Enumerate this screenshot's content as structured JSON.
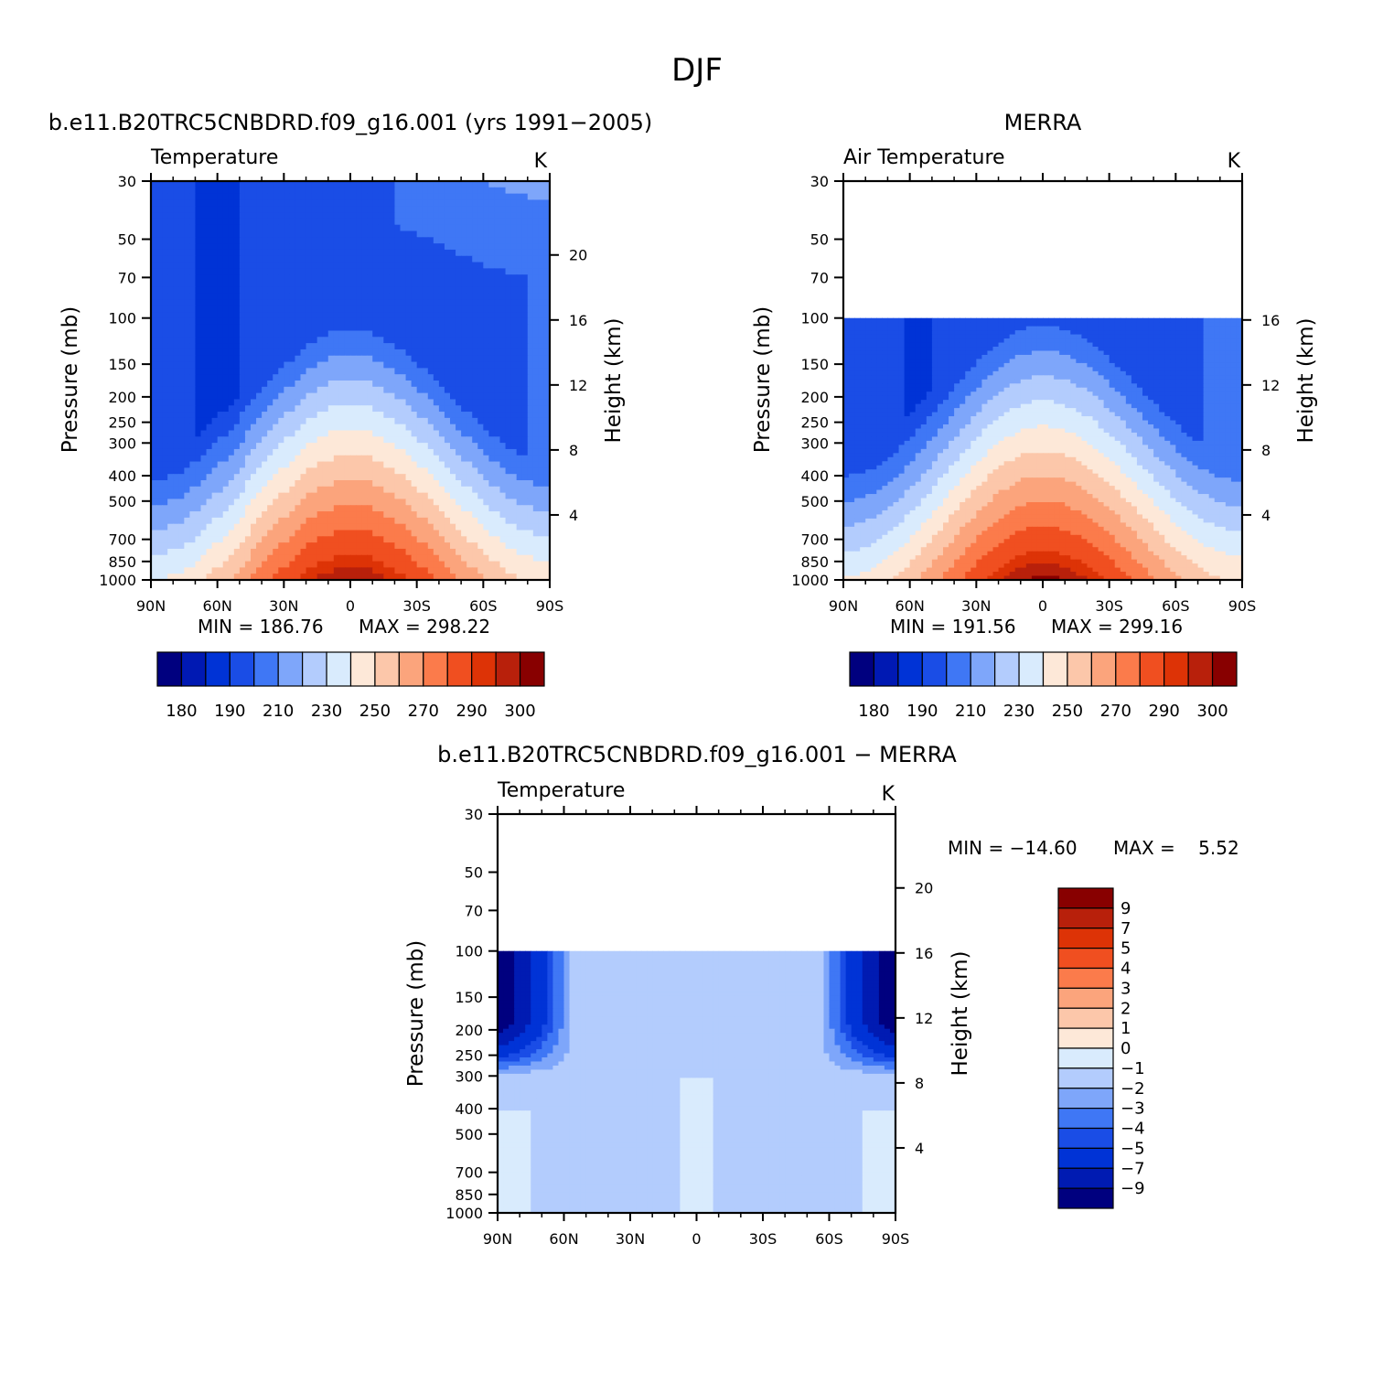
{
  "figure_title": "DJF",
  "colors": {
    "abs": [
      "#00007f",
      "#0019b3",
      "#0033d6",
      "#1a4de6",
      "#3f77f5",
      "#7ea6fa",
      "#b3ccfd",
      "#d9ebfd",
      "#fde8d8",
      "#fcc7aa",
      "#fba47c",
      "#fb7b4b",
      "#f04f20",
      "#dd3306",
      "#b8200b",
      "#880000"
    ],
    "diff": [
      "#00007f",
      "#001bb2",
      "#0033d6",
      "#1a4de6",
      "#3f77f5",
      "#7ea6fa",
      "#b3ccfd",
      "#d9ebfd",
      "#fde8d8",
      "#fcc7aa",
      "#fba47c",
      "#fb7b4b",
      "#f04f20",
      "#dd3306",
      "#b8200b",
      "#880000"
    ]
  },
  "chart_data": [
    {
      "type": "heatmap",
      "title": "b.e11.B20TRC5CNBDRD.f09_g16.001 (yrs 1991−2005)",
      "left_label": "Temperature",
      "right_label": "K",
      "xlabel": "",
      "ylabel": "Pressure (mb)",
      "y2label": "Height (km)",
      "x_ticks": [
        "90N",
        "60N",
        "30N",
        "0",
        "30S",
        "60S",
        "90S"
      ],
      "y_ticks": [
        "30",
        "50",
        "70",
        "100",
        "150",
        "200",
        "250",
        "300",
        "400",
        "500",
        "700",
        "850",
        "1000"
      ],
      "y2_ticks": [
        "20",
        "16",
        "12",
        "8",
        "4"
      ],
      "min_text": "MIN = 186.76",
      "max_text": "MAX = 298.22",
      "min": 186.76,
      "max": 298.22,
      "colorbar_labels": [
        "180",
        "190",
        "210",
        "230",
        "250",
        "270",
        "290",
        "300"
      ],
      "ptop": 30
    },
    {
      "type": "heatmap",
      "title": "MERRA",
      "left_label": "Air Temperature",
      "right_label": "K",
      "xlabel": "",
      "ylabel": "Pressure (mb)",
      "y2label": "Height (km)",
      "x_ticks": [
        "90N",
        "60N",
        "30N",
        "0",
        "30S",
        "60S",
        "90S"
      ],
      "y_ticks": [
        "30",
        "50",
        "70",
        "100",
        "150",
        "200",
        "250",
        "300",
        "400",
        "500",
        "700",
        "850",
        "1000"
      ],
      "y2_ticks": [
        "16",
        "12",
        "8",
        "4"
      ],
      "min_text": "MIN = 191.56",
      "max_text": "MAX = 299.16",
      "min": 191.56,
      "max": 299.16,
      "colorbar_labels": [
        "180",
        "190",
        "210",
        "230",
        "250",
        "270",
        "290",
        "300"
      ],
      "ptop": 100
    },
    {
      "type": "heatmap",
      "title": "b.e11.B20TRC5CNBDRD.f09_g16.001 − MERRA",
      "left_label": "Temperature",
      "right_label": "K",
      "xlabel": "",
      "ylabel": "Pressure (mb)",
      "y2label": "Height (km)",
      "x_ticks": [
        "90N",
        "60N",
        "30N",
        "0",
        "30S",
        "60S",
        "90S"
      ],
      "y_ticks": [
        "30",
        "50",
        "70",
        "100",
        "150",
        "200",
        "250",
        "300",
        "400",
        "500",
        "700",
        "850",
        "1000"
      ],
      "y2_ticks": [
        "20",
        "16",
        "12",
        "8",
        "4"
      ],
      "min_text": "MIN = −14.60",
      "max_text": "MAX =    5.52",
      "min": -14.6,
      "max": 5.52,
      "colorbar_labels": [
        "9",
        "7",
        "5",
        "4",
        "3",
        "2",
        "1",
        "0",
        "−1",
        "−2",
        "−3",
        "−4",
        "−5",
        "−7",
        "−9"
      ],
      "ptop": 100
    }
  ]
}
